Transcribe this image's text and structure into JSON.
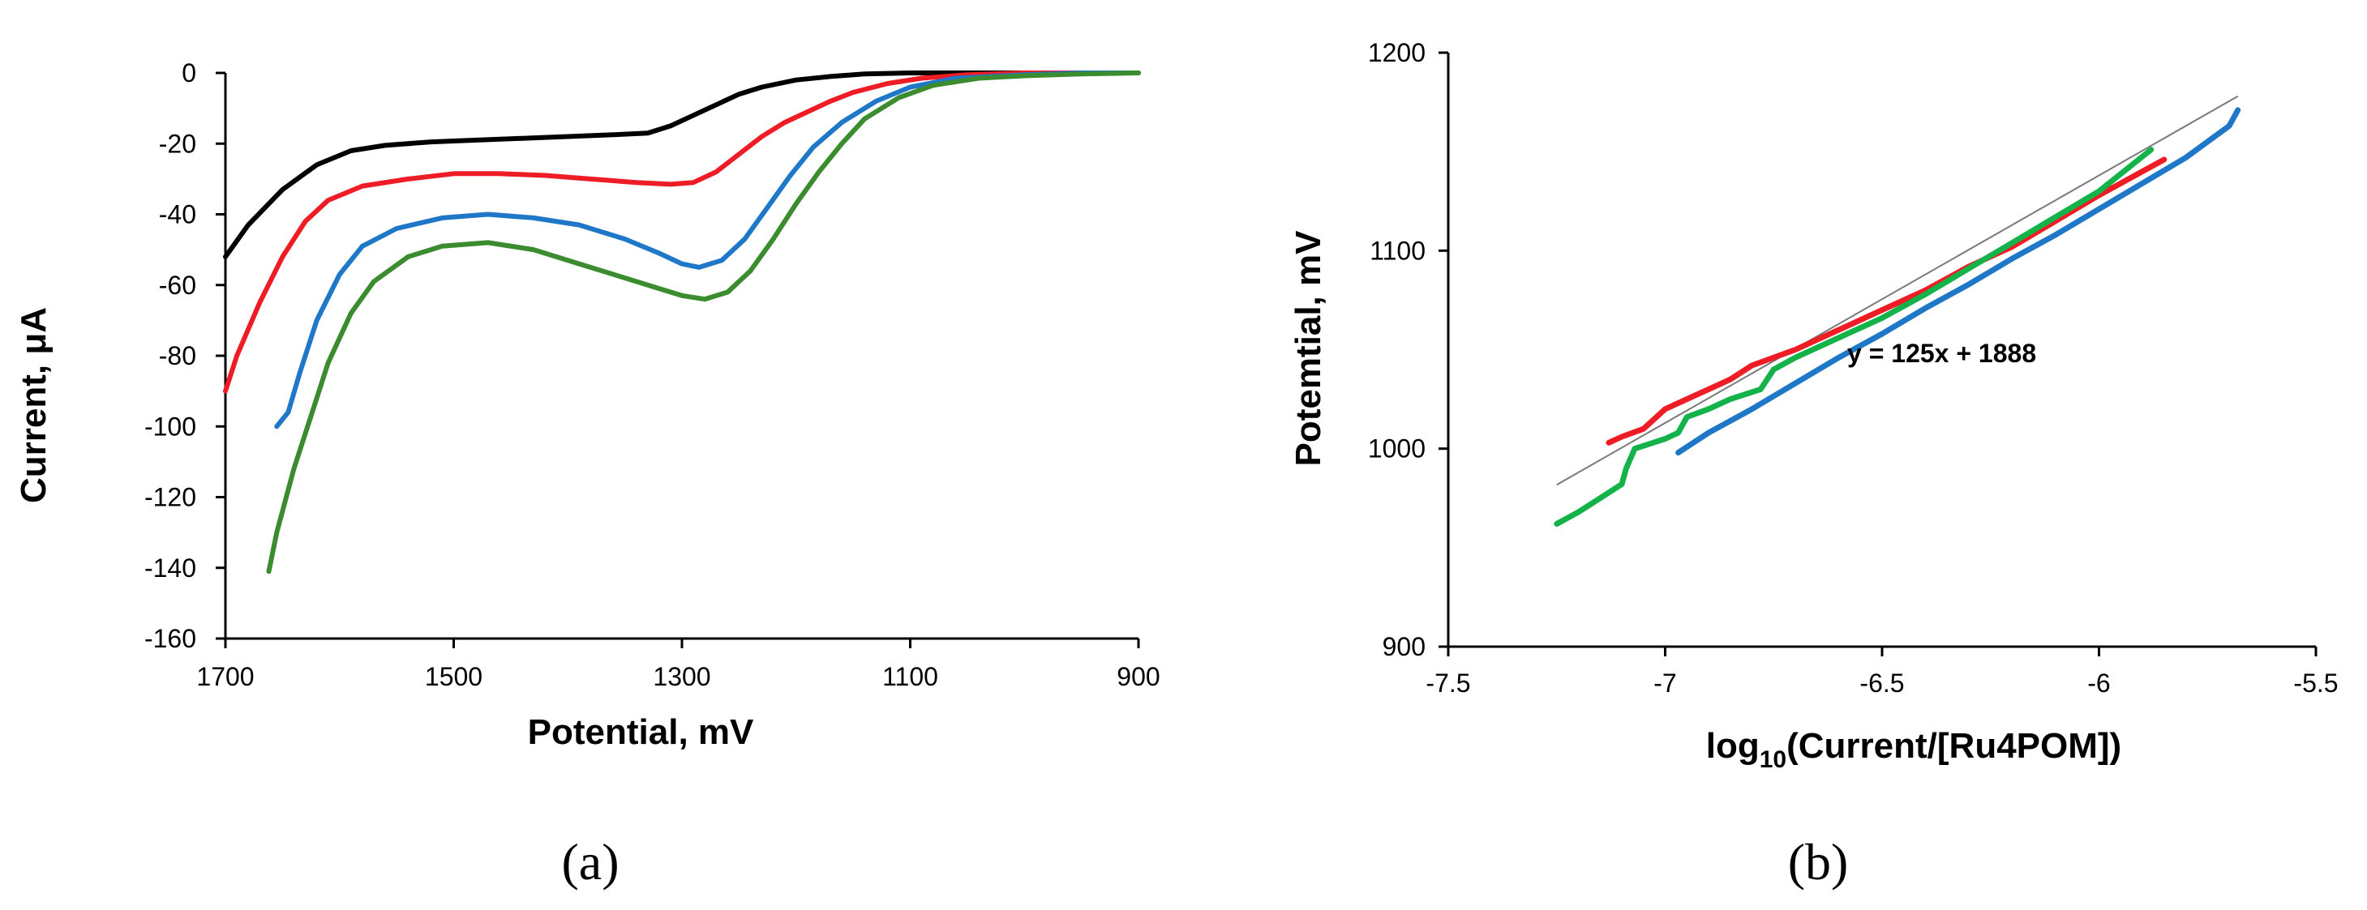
{
  "chart_data": [
    {
      "type": "line",
      "panel_label": "(a)",
      "xlabel": "Potential, mV",
      "ylabel": "Current, μA",
      "xlim": [
        1700,
        900
      ],
      "ylim": [
        -160,
        0
      ],
      "x_reversed": true,
      "x_ticks": [
        1700,
        1500,
        1300,
        1100,
        900
      ],
      "y_ticks": [
        0,
        -20,
        -40,
        -60,
        -80,
        -100,
        -120,
        -140,
        -160
      ],
      "grid": false,
      "legend": "none",
      "series": [
        {
          "color": "#000000",
          "points": [
            [
              1700,
              -52
            ],
            [
              1680,
              -43
            ],
            [
              1650,
              -33
            ],
            [
              1620,
              -26
            ],
            [
              1590,
              -22
            ],
            [
              1560,
              -20.5
            ],
            [
              1520,
              -19.5
            ],
            [
              1480,
              -19
            ],
            [
              1440,
              -18.5
            ],
            [
              1400,
              -18
            ],
            [
              1360,
              -17.5
            ],
            [
              1330,
              -17
            ],
            [
              1310,
              -15
            ],
            [
              1290,
              -12
            ],
            [
              1270,
              -9
            ],
            [
              1250,
              -6
            ],
            [
              1230,
              -4
            ],
            [
              1200,
              -2
            ],
            [
              1170,
              -1
            ],
            [
              1140,
              -0.3
            ],
            [
              1100,
              0
            ],
            [
              1000,
              0
            ],
            [
              900,
              0
            ]
          ]
        },
        {
          "color": "#ee1c25",
          "points": [
            [
              1700,
              -90
            ],
            [
              1690,
              -80
            ],
            [
              1670,
              -65
            ],
            [
              1650,
              -52
            ],
            [
              1630,
              -42
            ],
            [
              1610,
              -36
            ],
            [
              1580,
              -32
            ],
            [
              1540,
              -30
            ],
            [
              1500,
              -28.5
            ],
            [
              1460,
              -28.5
            ],
            [
              1420,
              -29
            ],
            [
              1380,
              -30
            ],
            [
              1340,
              -31
            ],
            [
              1310,
              -31.5
            ],
            [
              1290,
              -31
            ],
            [
              1270,
              -28
            ],
            [
              1250,
              -23
            ],
            [
              1230,
              -18
            ],
            [
              1210,
              -14
            ],
            [
              1190,
              -11
            ],
            [
              1170,
              -8
            ],
            [
              1150,
              -5.5
            ],
            [
              1120,
              -3
            ],
            [
              1090,
              -1.5
            ],
            [
              1050,
              -0.5
            ],
            [
              1000,
              0
            ],
            [
              900,
              0
            ]
          ]
        },
        {
          "color": "#1f77c8",
          "points": [
            [
              1655,
              -100
            ],
            [
              1645,
              -96
            ],
            [
              1635,
              -85
            ],
            [
              1620,
              -70
            ],
            [
              1600,
              -57
            ],
            [
              1580,
              -49
            ],
            [
              1550,
              -44
            ],
            [
              1510,
              -41
            ],
            [
              1470,
              -40
            ],
            [
              1430,
              -41
            ],
            [
              1390,
              -43
            ],
            [
              1350,
              -47
            ],
            [
              1320,
              -51
            ],
            [
              1300,
              -54
            ],
            [
              1285,
              -55
            ],
            [
              1265,
              -53
            ],
            [
              1245,
              -47
            ],
            [
              1225,
              -38
            ],
            [
              1205,
              -29
            ],
            [
              1185,
              -21
            ],
            [
              1160,
              -14
            ],
            [
              1130,
              -8
            ],
            [
              1100,
              -4
            ],
            [
              1060,
              -1.5
            ],
            [
              1000,
              -0.5
            ],
            [
              950,
              0
            ],
            [
              900,
              0
            ]
          ]
        },
        {
          "color": "#3a8c2e",
          "points": [
            [
              1662,
              -141
            ],
            [
              1655,
              -130
            ],
            [
              1640,
              -112
            ],
            [
              1625,
              -97
            ],
            [
              1610,
              -82
            ],
            [
              1590,
              -68
            ],
            [
              1570,
              -59
            ],
            [
              1540,
              -52
            ],
            [
              1510,
              -49
            ],
            [
              1470,
              -48
            ],
            [
              1430,
              -50
            ],
            [
              1390,
              -54
            ],
            [
              1350,
              -58
            ],
            [
              1320,
              -61
            ],
            [
              1300,
              -63
            ],
            [
              1280,
              -64
            ],
            [
              1260,
              -62
            ],
            [
              1240,
              -56
            ],
            [
              1220,
              -47
            ],
            [
              1200,
              -37
            ],
            [
              1180,
              -28
            ],
            [
              1160,
              -20
            ],
            [
              1140,
              -13
            ],
            [
              1110,
              -7
            ],
            [
              1080,
              -3.5
            ],
            [
              1040,
              -1.5
            ],
            [
              1000,
              -0.8
            ],
            [
              950,
              -0.3
            ],
            [
              900,
              0
            ]
          ]
        }
      ]
    },
    {
      "type": "line",
      "panel_label": "(b)",
      "xlabel_main": "log",
      "xlabel_sub": "10",
      "xlabel_rest": "(Current/[Ru4POM])",
      "ylabel": "Potemtial, mV",
      "xlim": [
        -7.5,
        -5.5
      ],
      "ylim": [
        900,
        1200
      ],
      "x_ticks": [
        -7.5,
        -7,
        -6.5,
        -6,
        -5.5
      ],
      "y_ticks": [
        900,
        1000,
        1100,
        1200
      ],
      "grid": false,
      "legend": "none",
      "annotation": "y = 125x + 1888",
      "fit_line": {
        "color": "#7a7a7a",
        "slope": 125,
        "intercept": 1888,
        "x_range": [
          -7.25,
          -5.68
        ]
      },
      "series": [
        {
          "color": "#ee1c25",
          "points": [
            [
              -7.13,
              1003
            ],
            [
              -7.1,
              1006
            ],
            [
              -7.05,
              1010
            ],
            [
              -7.0,
              1020
            ],
            [
              -6.95,
              1025
            ],
            [
              -6.9,
              1030
            ],
            [
              -6.85,
              1035
            ],
            [
              -6.8,
              1042
            ],
            [
              -6.7,
              1050
            ],
            [
              -6.6,
              1060
            ],
            [
              -6.5,
              1070
            ],
            [
              -6.4,
              1080
            ],
            [
              -6.3,
              1092
            ],
            [
              -6.2,
              1102
            ],
            [
              -6.1,
              1115
            ],
            [
              -6.0,
              1128
            ],
            [
              -5.9,
              1140
            ],
            [
              -5.85,
              1146
            ]
          ]
        },
        {
          "color": "#14b34a",
          "points": [
            [
              -7.25,
              962
            ],
            [
              -7.2,
              968
            ],
            [
              -7.15,
              975
            ],
            [
              -7.1,
              982
            ],
            [
              -7.09,
              990
            ],
            [
              -7.07,
              1000
            ],
            [
              -7.0,
              1005
            ],
            [
              -6.97,
              1008
            ],
            [
              -6.95,
              1016
            ],
            [
              -6.9,
              1020
            ],
            [
              -6.85,
              1025
            ],
            [
              -6.78,
              1030
            ],
            [
              -6.75,
              1040
            ],
            [
              -6.7,
              1046
            ],
            [
              -6.6,
              1056
            ],
            [
              -6.5,
              1066
            ],
            [
              -6.4,
              1078
            ],
            [
              -6.3,
              1091
            ],
            [
              -6.2,
              1104
            ],
            [
              -6.1,
              1117
            ],
            [
              -6.0,
              1130
            ],
            [
              -5.92,
              1144
            ],
            [
              -5.88,
              1151
            ]
          ]
        },
        {
          "color": "#1f77c8",
          "points": [
            [
              -6.97,
              998
            ],
            [
              -6.9,
              1008
            ],
            [
              -6.8,
              1020
            ],
            [
              -6.7,
              1033
            ],
            [
              -6.6,
              1046
            ],
            [
              -6.5,
              1058
            ],
            [
              -6.4,
              1071
            ],
            [
              -6.3,
              1083
            ],
            [
              -6.2,
              1096
            ],
            [
              -6.1,
              1108
            ],
            [
              -6.0,
              1121
            ],
            [
              -5.9,
              1134
            ],
            [
              -5.8,
              1147
            ],
            [
              -5.7,
              1163
            ],
            [
              -5.68,
              1171
            ]
          ]
        }
      ]
    }
  ]
}
